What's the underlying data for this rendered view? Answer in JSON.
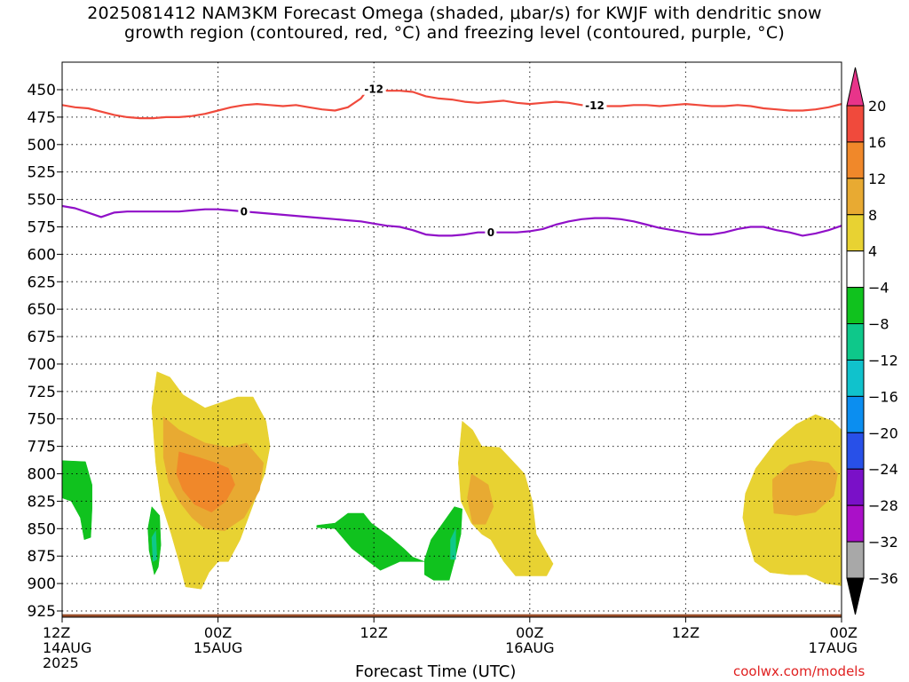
{
  "title": {
    "line1": "2025081412 NAM3KM Forecast Omega (shaded, μbar/s) for KWJF with dendritic snow",
    "line2": "growth region (contoured, red, °C) and freezing level (contoured, purple, °C)"
  },
  "x_axis_title": "Forecast Time (UTC)",
  "credit": "coolwx.com/models",
  "chart_data": {
    "type": "heatmap",
    "x_unit": "hours since 2025-08-14 12Z",
    "xlim": [
      0,
      60
    ],
    "ylim_hpa": [
      930,
      420
    ],
    "y_scale": "pressure (inverted)",
    "grid": true,
    "x_ticks": [
      {
        "hour": 0,
        "label": [
          "12Z",
          "14AUG",
          "2025"
        ]
      },
      {
        "hour": 12,
        "label": [
          "00Z",
          "15AUG"
        ]
      },
      {
        "hour": 24,
        "label": [
          "12Z"
        ]
      },
      {
        "hour": 36,
        "label": [
          "00Z",
          "16AUG"
        ]
      },
      {
        "hour": 48,
        "label": [
          "12Z"
        ]
      },
      {
        "hour": 60,
        "label": [
          "00Z",
          "17AUG"
        ]
      }
    ],
    "y_ticks": [
      450,
      475,
      500,
      525,
      550,
      575,
      600,
      625,
      650,
      675,
      700,
      725,
      750,
      775,
      800,
      825,
      850,
      875,
      900,
      925
    ],
    "colorbar": {
      "labels": [
        "20",
        "16",
        "12",
        "8",
        "4",
        "−4",
        "−8",
        "−12",
        "−16",
        "−20",
        "−24",
        "−28",
        "−32",
        "−36"
      ],
      "colors": [
        "#e8348a",
        "#f04a3c",
        "#f0882a",
        "#e8aa32",
        "#e8d232",
        "#ffffff",
        "#10c21e",
        "#0ec88a",
        "#10c2cc",
        "#0b8ef0",
        "#2850e8",
        "#7a10c8",
        "#aa10c8",
        "#a8a8a8",
        "#000000"
      ]
    },
    "contours": [
      {
        "label": "-12",
        "color": "#f04a3c",
        "points": [
          [
            0,
            464
          ],
          [
            1,
            466
          ],
          [
            2,
            467
          ],
          [
            3,
            470
          ],
          [
            4,
            473
          ],
          [
            5,
            475
          ],
          [
            6,
            476
          ],
          [
            7,
            476
          ],
          [
            8,
            475
          ],
          [
            9,
            475
          ],
          [
            10,
            474
          ],
          [
            11,
            472
          ],
          [
            12,
            469
          ],
          [
            13,
            466
          ],
          [
            14,
            464
          ],
          [
            15,
            463
          ],
          [
            16,
            464
          ],
          [
            17,
            465
          ],
          [
            18,
            464
          ],
          [
            19,
            466
          ],
          [
            20,
            468
          ],
          [
            21,
            469
          ],
          [
            22,
            466
          ],
          [
            23,
            458
          ],
          [
            23.5,
            450
          ],
          [
            24,
            449
          ],
          [
            25,
            451
          ],
          [
            26,
            451
          ],
          [
            27,
            452
          ],
          [
            28,
            456
          ],
          [
            29,
            458
          ],
          [
            30,
            459
          ],
          [
            31,
            461
          ],
          [
            32,
            462
          ],
          [
            33,
            461
          ],
          [
            34,
            460
          ],
          [
            35,
            462
          ],
          [
            36,
            463
          ],
          [
            37,
            462
          ],
          [
            38,
            461
          ],
          [
            39,
            462
          ],
          [
            40,
            464
          ],
          [
            41,
            464
          ],
          [
            42,
            465
          ],
          [
            43,
            465
          ],
          [
            44,
            464
          ],
          [
            45,
            464
          ],
          [
            46,
            465
          ],
          [
            47,
            464
          ],
          [
            48,
            463
          ],
          [
            49,
            464
          ],
          [
            50,
            465
          ],
          [
            51,
            465
          ],
          [
            52,
            464
          ],
          [
            53,
            465
          ],
          [
            54,
            467
          ],
          [
            55,
            468
          ],
          [
            56,
            469
          ],
          [
            57,
            469
          ],
          [
            58,
            468
          ],
          [
            59,
            466
          ],
          [
            60,
            463
          ]
        ],
        "labels_at_hours": [
          24.0,
          41.0
        ]
      },
      {
        "label": "0",
        "color": "#9010c8",
        "points": [
          [
            0,
            556
          ],
          [
            1,
            558
          ],
          [
            2,
            562
          ],
          [
            3,
            566
          ],
          [
            4,
            562
          ],
          [
            5,
            561
          ],
          [
            6,
            561
          ],
          [
            7,
            561
          ],
          [
            8,
            561
          ],
          [
            9,
            561
          ],
          [
            10,
            560
          ],
          [
            11,
            559
          ],
          [
            12,
            559
          ],
          [
            13,
            560
          ],
          [
            14,
            561
          ],
          [
            15,
            562
          ],
          [
            16,
            563
          ],
          [
            17,
            564
          ],
          [
            18,
            565
          ],
          [
            19,
            566
          ],
          [
            20,
            567
          ],
          [
            21,
            568
          ],
          [
            22,
            569
          ],
          [
            23,
            570
          ],
          [
            24,
            572
          ],
          [
            25,
            574
          ],
          [
            26,
            575
          ],
          [
            27,
            578
          ],
          [
            28,
            582
          ],
          [
            29,
            583
          ],
          [
            30,
            583
          ],
          [
            31,
            582
          ],
          [
            32,
            580
          ],
          [
            33,
            580
          ],
          [
            34,
            580
          ],
          [
            35,
            580
          ],
          [
            36,
            579
          ],
          [
            37,
            577
          ],
          [
            38,
            573
          ],
          [
            39,
            570
          ],
          [
            40,
            568
          ],
          [
            41,
            567
          ],
          [
            42,
            567
          ],
          [
            43,
            568
          ],
          [
            44,
            570
          ],
          [
            45,
            573
          ],
          [
            46,
            576
          ],
          [
            47,
            578
          ],
          [
            48,
            580
          ],
          [
            49,
            582
          ],
          [
            50,
            582
          ],
          [
            51,
            580
          ],
          [
            52,
            577
          ],
          [
            53,
            575
          ],
          [
            54,
            575
          ],
          [
            55,
            578
          ],
          [
            56,
            580
          ],
          [
            57,
            583
          ],
          [
            58,
            581
          ],
          [
            59,
            578
          ],
          [
            60,
            574
          ]
        ],
        "labels_at_hours": [
          14.0,
          33.0
        ]
      }
    ],
    "ground_level_hpa": 928,
    "omega_regions": [
      {
        "value": 4,
        "color": "#e8d232",
        "points": [
          [
            7.3,
            707
          ],
          [
            8.3,
            712
          ],
          [
            9.3,
            728
          ],
          [
            11,
            740
          ],
          [
            12,
            736
          ],
          [
            13.5,
            730
          ],
          [
            14.7,
            730
          ],
          [
            15.7,
            752
          ],
          [
            16,
            775
          ],
          [
            15.6,
            800
          ],
          [
            14.8,
            825
          ],
          [
            13.7,
            860
          ],
          [
            12.8,
            880
          ],
          [
            12,
            880
          ],
          [
            11.3,
            890
          ],
          [
            10.7,
            905
          ],
          [
            9.5,
            903
          ],
          [
            9,
            880
          ],
          [
            8.4,
            855
          ],
          [
            7.6,
            825
          ],
          [
            7.2,
            790
          ],
          [
            6.9,
            740
          ]
        ]
      },
      {
        "value": 8,
        "color": "#e8aa32",
        "points": [
          [
            7.8,
            748
          ],
          [
            9,
            760
          ],
          [
            11,
            772
          ],
          [
            12.8,
            776
          ],
          [
            14.2,
            772
          ],
          [
            15.5,
            790
          ],
          [
            15.2,
            815
          ],
          [
            14,
            840
          ],
          [
            12.5,
            852
          ],
          [
            11,
            850
          ],
          [
            10,
            840
          ],
          [
            9,
            825
          ],
          [
            8.2,
            808
          ],
          [
            7.8,
            785
          ]
        ]
      },
      {
        "value": 12,
        "color": "#f0882a",
        "points": [
          [
            9,
            780
          ],
          [
            10.5,
            785
          ],
          [
            11.8,
            790
          ],
          [
            12.8,
            795
          ],
          [
            13.3,
            810
          ],
          [
            12.6,
            825
          ],
          [
            11.5,
            835
          ],
          [
            10.2,
            828
          ],
          [
            9.3,
            815
          ],
          [
            8.8,
            800
          ]
        ]
      },
      {
        "value": 4,
        "color": "#e8d232",
        "points": [
          [
            30.8,
            752
          ],
          [
            31.6,
            760
          ],
          [
            32.3,
            775
          ],
          [
            33.7,
            776
          ],
          [
            34.5,
            786
          ],
          [
            35.6,
            800
          ],
          [
            36.2,
            825
          ],
          [
            36.5,
            855
          ],
          [
            37.3,
            872
          ],
          [
            37.8,
            882
          ],
          [
            37.3,
            893
          ],
          [
            36,
            893
          ],
          [
            34.9,
            893
          ],
          [
            34,
            880
          ],
          [
            33,
            860
          ],
          [
            32.3,
            855
          ],
          [
            31.5,
            845
          ],
          [
            30.7,
            825
          ],
          [
            30.5,
            790
          ]
        ]
      },
      {
        "value": 8,
        "color": "#e8aa32",
        "points": [
          [
            31.5,
            800
          ],
          [
            32.8,
            810
          ],
          [
            33.2,
            830
          ],
          [
            32.6,
            846
          ],
          [
            31.6,
            846
          ],
          [
            31.2,
            822
          ]
        ]
      },
      {
        "value": 4,
        "color": "#e8d232",
        "points": [
          [
            52.6,
            818
          ],
          [
            53.4,
            795
          ],
          [
            55,
            770
          ],
          [
            56.5,
            755
          ],
          [
            58,
            746
          ],
          [
            59.3,
            752
          ],
          [
            60,
            760
          ],
          [
            60,
            902
          ],
          [
            58.8,
            900
          ],
          [
            57.3,
            892
          ],
          [
            56,
            892
          ],
          [
            54.5,
            890
          ],
          [
            53.3,
            880
          ],
          [
            52.8,
            860
          ],
          [
            52.4,
            840
          ]
        ]
      },
      {
        "value": 8,
        "color": "#e8aa32",
        "points": [
          [
            54.7,
            805
          ],
          [
            56,
            792
          ],
          [
            57.6,
            788
          ],
          [
            59,
            790
          ],
          [
            59.7,
            800
          ],
          [
            59.4,
            820
          ],
          [
            58,
            835
          ],
          [
            56.5,
            838
          ],
          [
            54.8,
            836
          ],
          [
            54.7,
            820
          ]
        ]
      },
      {
        "value": -4,
        "color": "#10c21e",
        "points": [
          [
            0,
            788
          ],
          [
            1.8,
            789
          ],
          [
            2.3,
            810
          ],
          [
            2.3,
            832
          ],
          [
            2.2,
            858
          ],
          [
            1.7,
            860
          ],
          [
            1.4,
            840
          ],
          [
            0.7,
            825
          ],
          [
            0,
            822
          ]
        ]
      },
      {
        "value": -4,
        "color": "#10c21e",
        "points": [
          [
            6.9,
            830
          ],
          [
            7.5,
            838
          ],
          [
            7.6,
            865
          ],
          [
            7.4,
            885
          ],
          [
            7.1,
            892
          ],
          [
            6.7,
            870
          ],
          [
            6.6,
            850
          ]
        ]
      },
      {
        "value": -4,
        "color": "#10c21e",
        "points": [
          [
            19.6,
            847
          ],
          [
            21,
            845
          ],
          [
            22,
            836
          ],
          [
            23.2,
            836
          ],
          [
            23.8,
            845
          ],
          [
            25.2,
            857
          ],
          [
            26.3,
            868
          ],
          [
            27,
            876
          ],
          [
            27.9,
            880
          ],
          [
            26,
            880
          ],
          [
            24.5,
            888
          ],
          [
            23.6,
            880
          ],
          [
            22.3,
            868
          ],
          [
            21,
            850
          ],
          [
            19.6,
            849
          ]
        ]
      },
      {
        "value": -4,
        "color": "#10c21e",
        "points": [
          [
            27.9,
            878
          ],
          [
            28.4,
            860
          ],
          [
            29.3,
            845
          ],
          [
            30.2,
            830
          ],
          [
            30.8,
            832
          ],
          [
            30.7,
            855
          ],
          [
            30.3,
            875
          ],
          [
            29.8,
            897
          ],
          [
            28.6,
            897
          ],
          [
            27.9,
            892
          ]
        ]
      },
      {
        "value": -8,
        "color": "#0ec88a",
        "points": [
          [
            6.9,
            858
          ],
          [
            7.2,
            852
          ],
          [
            7.3,
            878
          ],
          [
            7.0,
            880
          ]
        ]
      },
      {
        "value": -8,
        "color": "#0ec88a",
        "points": [
          [
            29.9,
            860
          ],
          [
            30.3,
            850
          ],
          [
            30.3,
            878
          ],
          [
            29.9,
            878
          ]
        ]
      }
    ]
  }
}
